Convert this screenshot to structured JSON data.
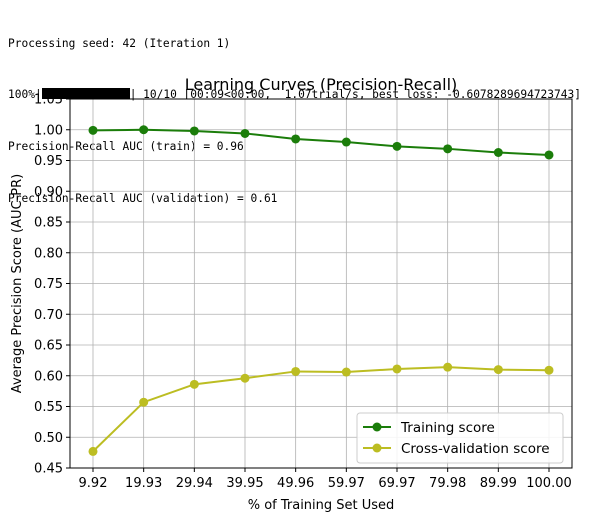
{
  "log": {
    "line1": "Processing seed: 42 (Iteration 1)",
    "progress_prefix": "100%|",
    "progress_fraction": 1.0,
    "progress_suffix": "| 10/10 [00:09<00:00,  1.07trial/s, best loss: -0.6078289694723743]",
    "line3": "Precision-Recall AUC (train) = 0.96",
    "line4": "Precision-Recall AUC (validation) = 0.61"
  },
  "chart_data": {
    "type": "line",
    "title": "Learning Curves (Precision-Recall)",
    "xlabel": "% of Training Set Used",
    "ylabel": "Average Precision Score (AUC-PR)",
    "categories": [
      "9.92",
      "19.93",
      "29.94",
      "39.95",
      "49.96",
      "59.97",
      "69.97",
      "79.98",
      "89.99",
      "100.00"
    ],
    "ylim": [
      0.45,
      1.05
    ],
    "yticks": [
      "0.45",
      "0.50",
      "0.55",
      "0.60",
      "0.65",
      "0.70",
      "0.75",
      "0.80",
      "0.85",
      "0.90",
      "0.95",
      "1.00",
      "1.05"
    ],
    "grid": true,
    "legend_position": "lower right",
    "series": [
      {
        "name": "Training score",
        "color": "#1b7d0a",
        "values": [
          0.999,
          1.0,
          0.998,
          0.994,
          0.985,
          0.98,
          0.973,
          0.969,
          0.963,
          0.959
        ]
      },
      {
        "name": "Cross-validation score",
        "color": "#bcbd22",
        "values": [
          0.477,
          0.557,
          0.586,
          0.596,
          0.607,
          0.606,
          0.611,
          0.614,
          0.61,
          0.609
        ]
      }
    ]
  }
}
